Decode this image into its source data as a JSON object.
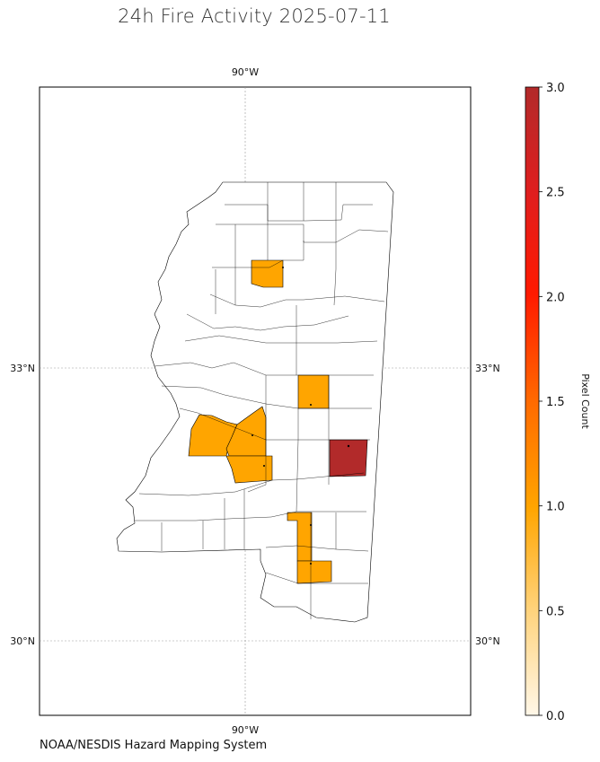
{
  "title": "24h Fire Activity 2025-07-11",
  "source": "NOAA/NESDIS Hazard Mapping System",
  "map": {
    "gridlines": {
      "lon_label": "90°W",
      "lat_labels": [
        "33°N",
        "30°N"
      ]
    },
    "region": "Mississippi counties"
  },
  "colorbar": {
    "label": "Pixel Count",
    "min": 0.0,
    "max": 3.0,
    "ticks": [
      "0.0",
      "0.5",
      "1.0",
      "1.5",
      "2.0",
      "2.5",
      "3.0"
    ],
    "colors": [
      "#fff4e0",
      "#ffd27a",
      "#ffa500",
      "#ff6a00",
      "#ff1a00",
      "#d92020",
      "#b22a2a"
    ]
  },
  "chart_data": {
    "type": "choropleth",
    "title": "24h Fire Activity 2025-07-11",
    "legend_label": "Pixel Count",
    "range": [
      0,
      3
    ],
    "highlighted_counties": [
      {
        "area": "north-central",
        "pixel_count": 1
      },
      {
        "area": "east-central",
        "pixel_count": 1
      },
      {
        "area": "central-west",
        "pixel_count": 1
      },
      {
        "area": "central",
        "pixel_count": 1
      },
      {
        "area": "central-south",
        "pixel_count": 1
      },
      {
        "area": "east",
        "pixel_count": 3
      },
      {
        "area": "south-central",
        "pixel_count": 1
      },
      {
        "area": "south",
        "pixel_count": 1
      }
    ]
  }
}
